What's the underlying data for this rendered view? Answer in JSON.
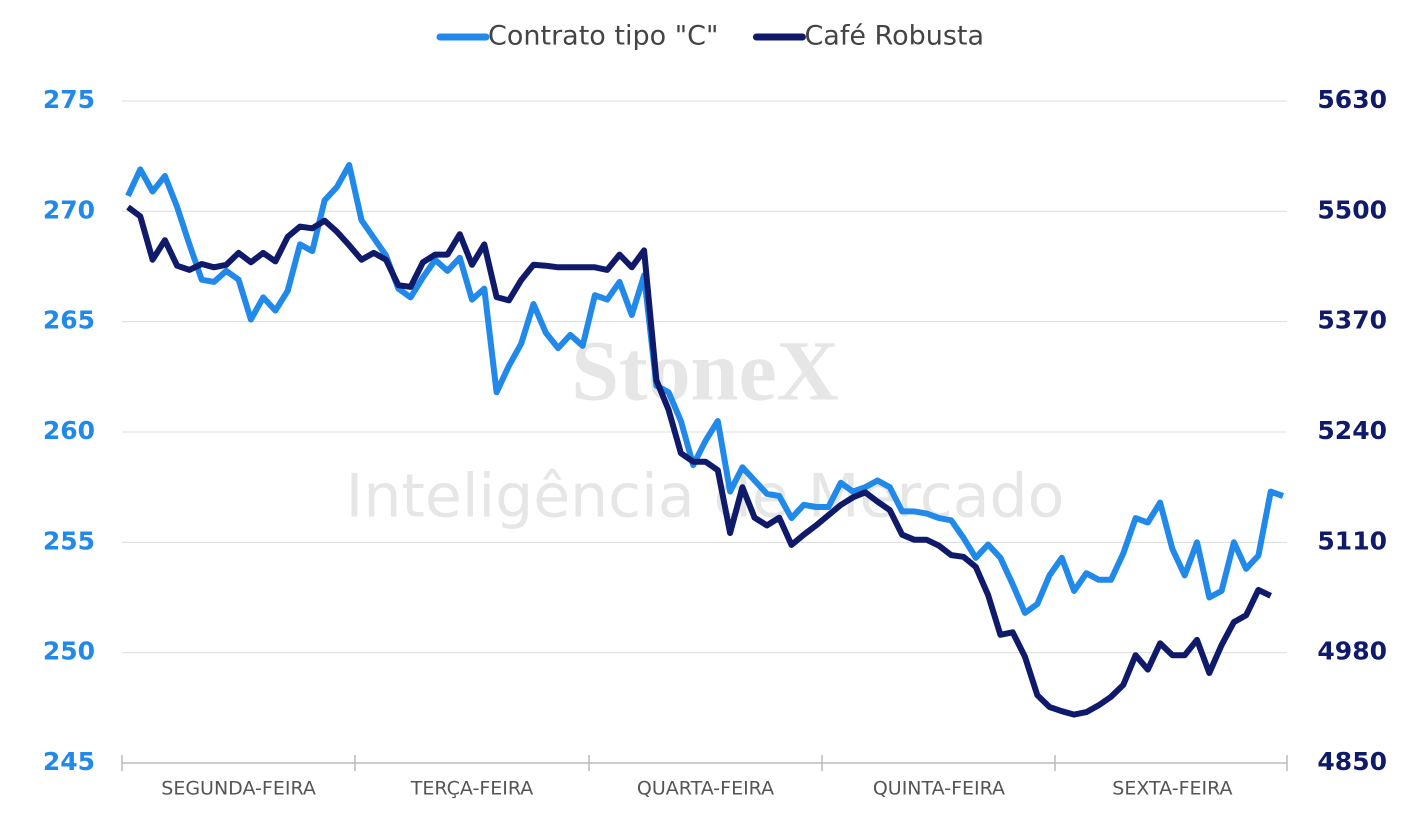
{
  "chart_data": {
    "type": "line",
    "watermark_title": "StoneX",
    "watermark_subtitle": "Inteligência de Mercado",
    "legend": "top",
    "grid": true,
    "categories": [
      null,
      null,
      null,
      null,
      null,
      null,
      null,
      null,
      null,
      "SEGUNDA-FEIRA",
      null,
      null,
      null,
      null,
      null,
      null,
      null,
      null,
      null,
      null,
      null,
      null,
      null,
      null,
      null,
      null,
      null,
      null,
      "TERÇA-FEIRA",
      null,
      null,
      null,
      null,
      null,
      null,
      null,
      null,
      null,
      null,
      null,
      null,
      null,
      null,
      null,
      null,
      null,
      null,
      "QUARTA-FEIRA",
      null,
      null,
      null,
      null,
      null,
      null,
      null,
      null,
      null,
      null,
      null,
      null,
      null,
      null,
      null,
      null,
      null,
      null,
      "QUINTA-FEIRA",
      null,
      null,
      null,
      null,
      null,
      null,
      null,
      null,
      null,
      null,
      null,
      null,
      null,
      null,
      null,
      null,
      null,
      null,
      "SEXTA-FEIRA",
      null,
      null,
      null,
      null,
      null,
      null,
      null,
      null,
      null
    ],
    "ylim": [
      245,
      275
    ],
    "yticks": [
      245,
      250,
      255,
      260,
      265,
      270,
      275
    ],
    "y2lim": [
      4850,
      5630
    ],
    "y2ticks": [
      4850,
      4980,
      5110,
      5240,
      5370,
      5500,
      5630
    ],
    "series": [
      {
        "name": "Contrato tipo \"C\"",
        "color": "#2189ea",
        "values": [
          270.7,
          271.9,
          270.9,
          271.6,
          270.2,
          268.5,
          266.9,
          266.8,
          267.3,
          266.9,
          265.1,
          266.1,
          265.5,
          266.4,
          268.5,
          268.2,
          270.5,
          271.1,
          272.1,
          269.6,
          268.8,
          268.0,
          266.5,
          266.1,
          267.0,
          267.8,
          267.3,
          267.9,
          266.0,
          266.5,
          261.8,
          263.0,
          264.0,
          265.8,
          264.5,
          263.8,
          264.4,
          263.9,
          266.2,
          266.0,
          266.8,
          265.3,
          267.1,
          262.1,
          261.8,
          260.5,
          258.5,
          259.6,
          260.5,
          257.3,
          258.4,
          257.8,
          257.2,
          257.1,
          256.1,
          256.7,
          256.6,
          256.6,
          257.7,
          257.3,
          257.5,
          257.8,
          257.5,
          256.4,
          256.4,
          256.3,
          256.1,
          256.0,
          255.2,
          254.3,
          254.9,
          254.3,
          253.1,
          251.8,
          252.2,
          253.5,
          254.3,
          252.8,
          253.6,
          253.3,
          253.3,
          254.5,
          256.1,
          255.9,
          256.8,
          254.7,
          253.5,
          255.0,
          252.5,
          252.8,
          255.0,
          253.8,
          254.4,
          257.3,
          257.1
        ]
      },
      {
        "name": "Café Robusta",
        "color": "#101a6b",
        "axis": "y2",
        "values": [
          5505,
          5494,
          5443,
          5466,
          5436,
          5431,
          5438,
          5434,
          5437,
          5451,
          5440,
          5451,
          5441,
          5470,
          5482,
          5480,
          5489,
          5476,
          5460,
          5443,
          5451,
          5443,
          5413,
          5411,
          5440,
          5449,
          5449,
          5473,
          5437,
          5461,
          5399,
          5395,
          5419,
          5437,
          5436,
          5434,
          5434,
          5434,
          5434,
          5431,
          5449,
          5434,
          5454,
          5301,
          5266,
          5215,
          5205,
          5205,
          5195,
          5121,
          5175,
          5139,
          5130,
          5139,
          5107,
          5119,
          5130,
          5142,
          5154,
          5163,
          5169,
          5158,
          5148,
          5119,
          5113,
          5113,
          5106,
          5095,
          5093,
          5081,
          5048,
          5001,
          5004,
          4975,
          4930,
          4916,
          4911,
          4907,
          4910,
          4918,
          4928,
          4942,
          4977,
          4960,
          4991,
          4977,
          4977,
          4995,
          4956,
          4989,
          5016,
          5024,
          5054,
          5047,
          null
        ]
      }
    ]
  }
}
